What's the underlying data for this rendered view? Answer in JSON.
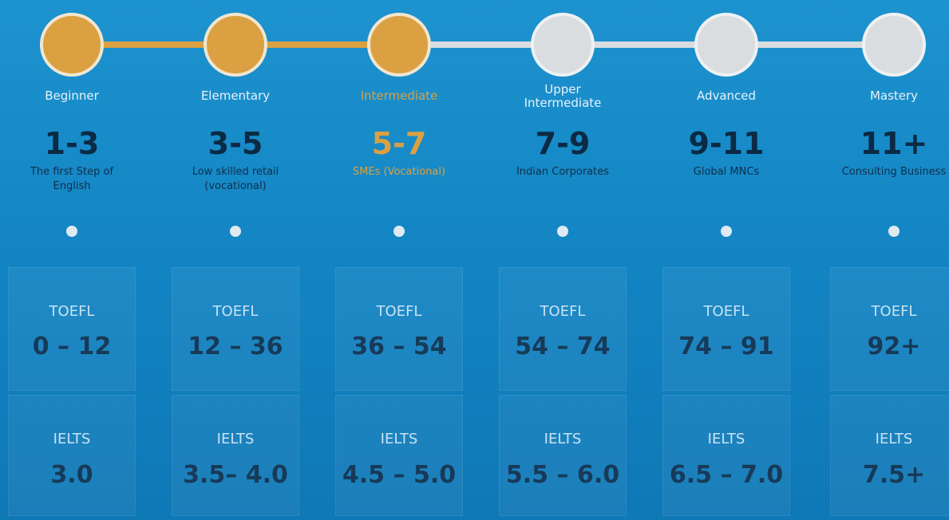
{
  "toefl_label": "TOEFL",
  "ielts_label": "IELTS",
  "reached_color": "#dba042",
  "pending_color": "#d9dde0",
  "levels": [
    {
      "name": "Beginner",
      "range": "1-3",
      "description": "The first Step of English",
      "toefl": "0 – 12",
      "ielts": "3.0",
      "reached": true,
      "current": false
    },
    {
      "name": "Elementary",
      "range": "3-5",
      "description": "Low skilled retail (vocational)",
      "toefl": "12 – 36",
      "ielts": "3.5– 4.0",
      "reached": true,
      "current": false
    },
    {
      "name": "Intermediate",
      "range": "5-7",
      "description": "SMEs (Vocational)",
      "toefl": "36 – 54",
      "ielts": "4.5 – 5.0",
      "reached": true,
      "current": true
    },
    {
      "name": "Upper Intermediate",
      "range": "7-9",
      "description": "Indian Corporates",
      "toefl": "54 – 74",
      "ielts": "5.5 – 6.0",
      "reached": false,
      "current": false
    },
    {
      "name": "Advanced",
      "range": "9-11",
      "description": "Global MNCs",
      "toefl": "74 – 91",
      "ielts": "6.5 – 7.0",
      "reached": false,
      "current": false
    },
    {
      "name": "Mastery",
      "range": "11+",
      "description": "Consulting Business",
      "toefl": "92+",
      "ielts": "7.5+",
      "reached": false,
      "current": false
    }
  ]
}
